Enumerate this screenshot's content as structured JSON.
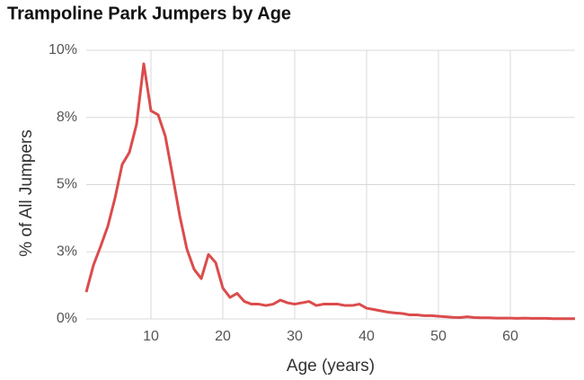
{
  "chart_data": {
    "type": "line",
    "title": "Trampoline Park Jumpers by Age",
    "x_label": "Age (years)",
    "y_label": "% of All Jumpers",
    "x": [
      1,
      2,
      3,
      4,
      5,
      6,
      7,
      8,
      9,
      10,
      11,
      12,
      13,
      14,
      15,
      16,
      17,
      18,
      19,
      20,
      21,
      22,
      23,
      24,
      25,
      26,
      27,
      28,
      29,
      30,
      31,
      32,
      33,
      34,
      35,
      36,
      37,
      38,
      39,
      40,
      41,
      42,
      43,
      44,
      45,
      46,
      47,
      48,
      49,
      50,
      51,
      52,
      53,
      54,
      55,
      56,
      57,
      58,
      59,
      60,
      61,
      62,
      63,
      64,
      65,
      66,
      67,
      68,
      69
    ],
    "series": [
      {
        "name": "Jumpers",
        "color": "#db4c4c",
        "values": [
          1.0,
          2.0,
          2.7,
          3.45,
          4.5,
          5.75,
          6.2,
          7.25,
          9.5,
          7.75,
          7.6,
          6.8,
          5.35,
          3.85,
          2.6,
          1.85,
          1.5,
          2.4,
          2.1,
          1.15,
          0.8,
          0.95,
          0.65,
          0.55,
          0.55,
          0.5,
          0.55,
          0.7,
          0.6,
          0.55,
          0.6,
          0.65,
          0.5,
          0.55,
          0.55,
          0.55,
          0.5,
          0.5,
          0.55,
          0.4,
          0.35,
          0.3,
          0.25,
          0.22,
          0.2,
          0.15,
          0.15,
          0.12,
          0.12,
          0.1,
          0.08,
          0.06,
          0.05,
          0.08,
          0.05,
          0.04,
          0.04,
          0.03,
          0.03,
          0.03,
          0.02,
          0.03,
          0.02,
          0.02,
          0.02,
          0.01,
          0.01,
          0.01,
          0.01
        ]
      }
    ],
    "xlim": [
      1,
      69
    ],
    "xticks": [
      10,
      20,
      30,
      40,
      50,
      60
    ],
    "ylim": [
      0,
      10
    ],
    "yticks": [
      {
        "value": 0,
        "label": "0%"
      },
      {
        "value": 2.5,
        "label": "3%"
      },
      {
        "value": 5,
        "label": "5%"
      },
      {
        "value": 7.5,
        "label": "8%"
      },
      {
        "value": 10,
        "label": "10%"
      }
    ],
    "grid": true
  }
}
